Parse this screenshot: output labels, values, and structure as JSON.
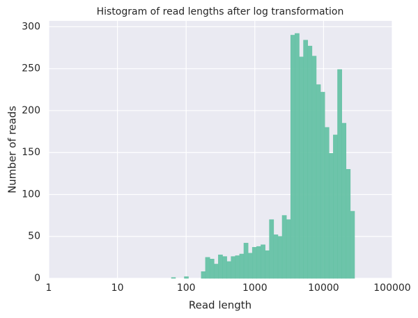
{
  "chart_data": {
    "type": "histogram",
    "title": "Histogram of read lengths after log transformation",
    "x_label": "Read length",
    "y_label": "Number of reads",
    "bins": [
      61,
      70,
      81,
      94,
      108,
      125,
      144,
      166,
      191,
      221,
      255,
      294,
      339,
      391,
      451,
      520,
      600,
      692,
      798,
      920,
      1062,
      1225,
      1413,
      1629,
      1879,
      2168,
      2500,
      2884,
      3327,
      3837,
      4426,
      5105,
      5888,
      6792,
      7834,
      9037,
      10423,
      12023,
      13868,
      15996,
      18450,
      21281,
      24547,
      28314
    ],
    "values": [
      1,
      0,
      0,
      2,
      0,
      0,
      0,
      8,
      25,
      23,
      17,
      28,
      26,
      20,
      26,
      27,
      29,
      42,
      30,
      37,
      38,
      40,
      33,
      70,
      52,
      50,
      75,
      70,
      290,
      292,
      264,
      284,
      277,
      265,
      231,
      222,
      180,
      149,
      171,
      249,
      185,
      130,
      80
    ],
    "color": "#66c2a5",
    "xscale": "log",
    "xlim": [
      1,
      100000
    ],
    "xticks": [
      1,
      10,
      100,
      1000,
      10000,
      100000
    ],
    "ylim": [
      0,
      307
    ],
    "yticks": [
      0,
      50,
      100,
      150,
      200,
      250,
      300
    ],
    "grid": true
  }
}
